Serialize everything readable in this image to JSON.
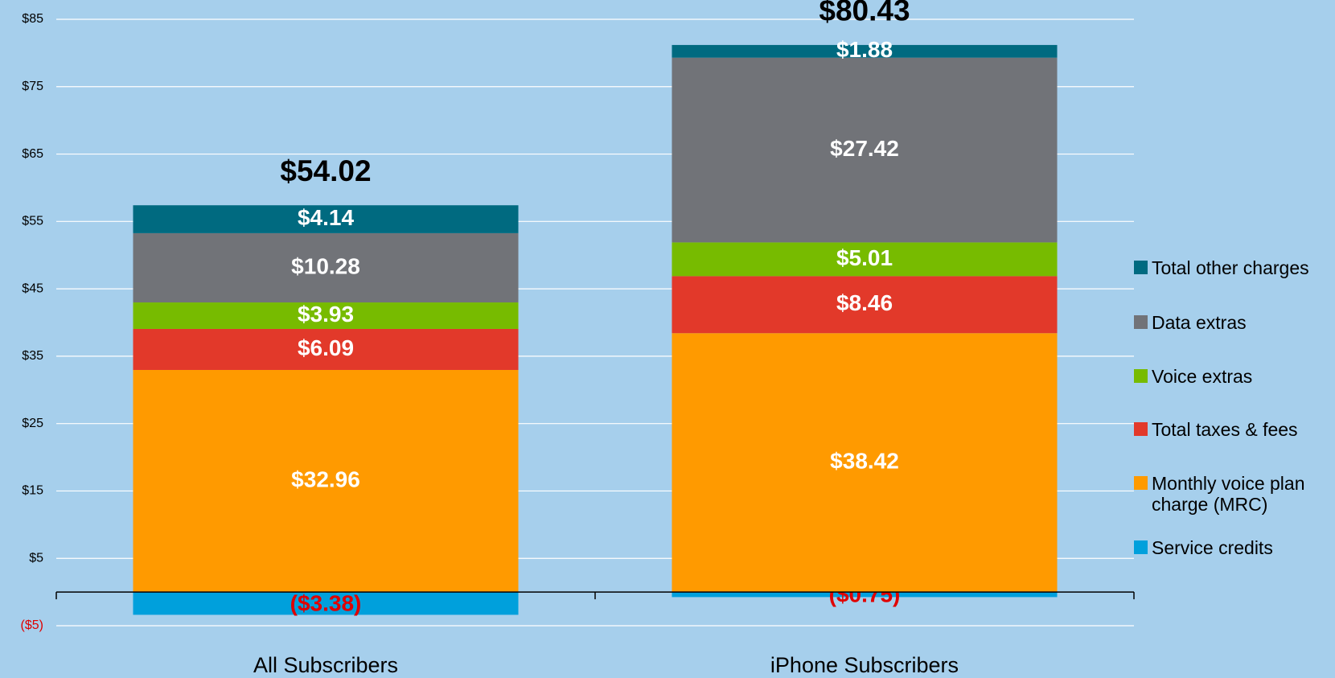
{
  "chart_data": {
    "type": "stacked_bar",
    "categories": [
      "All Subscribers",
      "iPhone Subscribers"
    ],
    "total_labels": [
      "$54.02",
      "$80.43"
    ],
    "series": [
      {
        "name": "Service credits",
        "color": "#00a0dc",
        "values": [
          -3.38,
          -0.75
        ],
        "value_labels": [
          "($3.38)",
          "($0.75)"
        ]
      },
      {
        "name": "Monthly voice plan charge (MRC)",
        "color": "#ff9a00",
        "values": [
          32.96,
          38.42
        ],
        "value_labels": [
          "$32.96",
          "$38.42"
        ]
      },
      {
        "name": "Total taxes & fees",
        "color": "#e2392a",
        "values": [
          6.09,
          8.46
        ],
        "value_labels": [
          "$6.09",
          "$8.46"
        ]
      },
      {
        "name": "Voice extras",
        "color": "#77bb00",
        "values": [
          3.93,
          5.01
        ],
        "value_labels": [
          "$3.93",
          "$5.01"
        ]
      },
      {
        "name": "Data extras",
        "color": "#717378",
        "values": [
          10.28,
          27.42
        ],
        "value_labels": [
          "$10.28",
          "$27.42"
        ]
      },
      {
        "name": "Total other charges",
        "color": "#006a80",
        "values": [
          4.14,
          1.88
        ],
        "value_labels": [
          "$4.14",
          "$1.88"
        ]
      }
    ],
    "ylim": [
      -5,
      85
    ],
    "yticks": [
      {
        "value": -5,
        "label": "($5)"
      },
      {
        "value": 5,
        "label": "$5"
      },
      {
        "value": 15,
        "label": "$15"
      },
      {
        "value": 25,
        "label": "$25"
      },
      {
        "value": 35,
        "label": "$35"
      },
      {
        "value": 45,
        "label": "$45"
      },
      {
        "value": 55,
        "label": "$55"
      },
      {
        "value": 65,
        "label": "$65"
      },
      {
        "value": 75,
        "label": "$75"
      },
      {
        "value": 85,
        "label": "$85"
      }
    ],
    "grid": true,
    "legend": "right"
  }
}
